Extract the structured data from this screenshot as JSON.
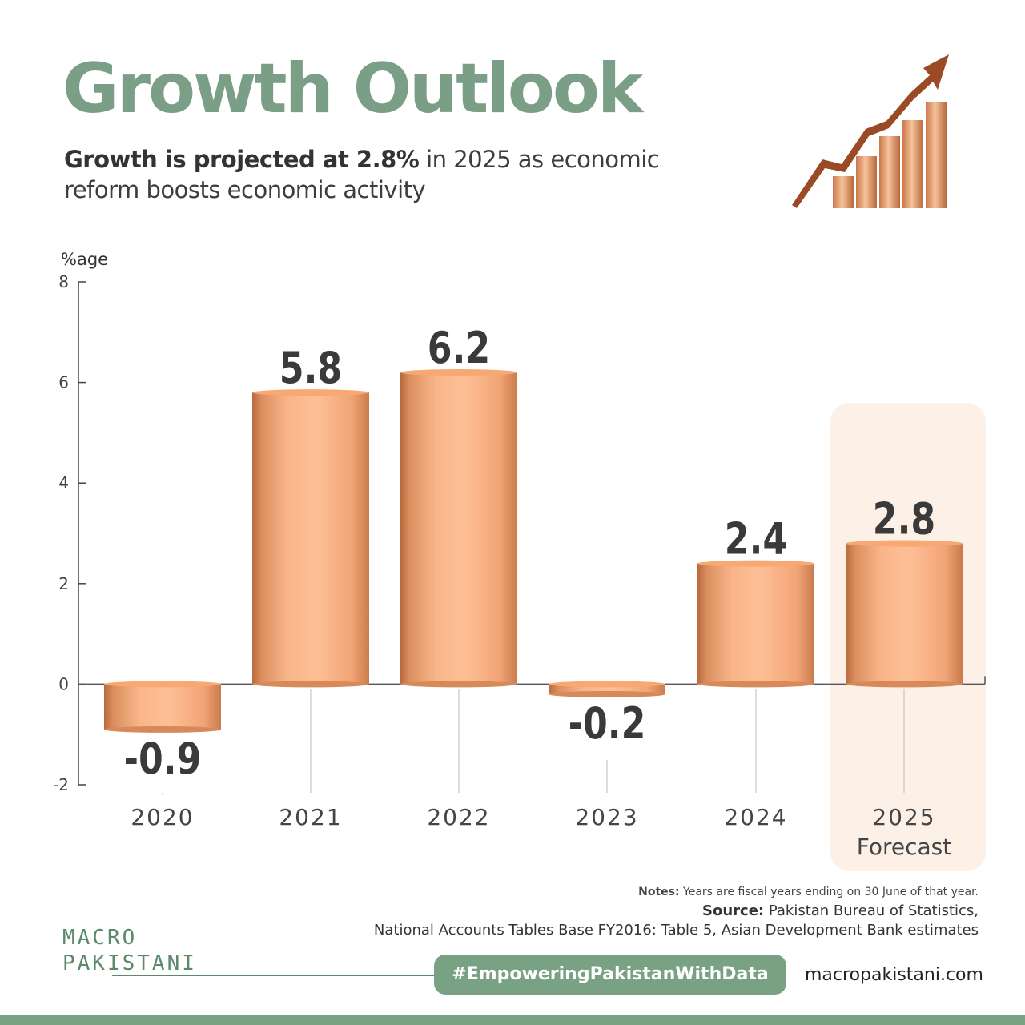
{
  "header": {
    "title": "Growth Outlook",
    "subtitle_bold": "Growth is projected at 2.8%",
    "subtitle_rest": " in 2025 as economic reform boosts economic activity"
  },
  "colors": {
    "accent": "#78a283",
    "bar": "#f4a878",
    "forecast_bg": "#fdf1e7"
  },
  "chart_data": {
    "type": "bar",
    "ylabel": "%age",
    "ylim": [
      -2,
      8
    ],
    "yticks": [
      "8",
      "6",
      "4",
      "2",
      "0",
      "-2"
    ],
    "categories": [
      "2020",
      "2021",
      "2022",
      "2023",
      "2024",
      "2025"
    ],
    "values": [
      -0.9,
      5.8,
      6.2,
      -0.2,
      2.4,
      2.8
    ],
    "value_labels": [
      "-0.9",
      "5.8",
      "6.2",
      "-0.2",
      "2.4",
      "2.8"
    ],
    "forecast_index": 5,
    "forecast_label": "Forecast",
    "grid": false
  },
  "footer": {
    "notes_label": "Notes:",
    "notes_text": " Years are fiscal years ending on 30 June of that year.",
    "source_label": "Source:",
    "source_text_1": " Pakistan Bureau of Statistics,",
    "source_text_2": "National Accounts Tables Base FY2016: Table 5, Asian Development Bank estimates",
    "logo_line1": "MACRO",
    "logo_line2": "PAKISTANI",
    "hashtag": "#EmpoweringPakistanWithData",
    "website": "macropakistani.com"
  },
  "icons": {
    "decoration": "growth-chart-arrow-icon"
  }
}
